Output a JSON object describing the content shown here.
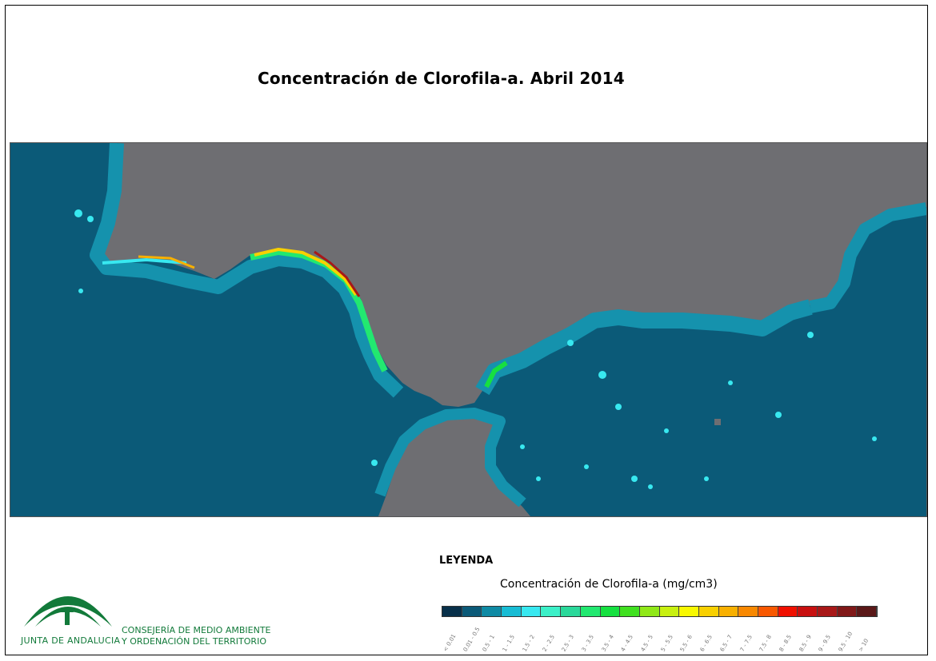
{
  "title": "Concentración de Clorofila-a. Abril 2014",
  "legend": {
    "heading": "LEYENDA",
    "title": "Concentración de Clorofila-a (mg/cm3)",
    "classes": [
      {
        "label": "< 0.01",
        "color": "#08304a"
      },
      {
        "label": "0.01 - 0.5",
        "color": "#0b5a78"
      },
      {
        "label": "0.5 - 1",
        "color": "#0f8aa4"
      },
      {
        "label": "1 - 1.5",
        "color": "#18bcd4"
      },
      {
        "label": "1.5 - 2",
        "color": "#38e8f0"
      },
      {
        "label": "2 - 2.5",
        "color": "#3cf0c8"
      },
      {
        "label": "2.5 - 3",
        "color": "#2ad89a"
      },
      {
        "label": "3 - 3.5",
        "color": "#22e870"
      },
      {
        "label": "3.5 - 4",
        "color": "#16e040"
      },
      {
        "label": "4 - 4.5",
        "color": "#40e020"
      },
      {
        "label": "4.5 - 5",
        "color": "#90e818"
      },
      {
        "label": "5 - 5.5",
        "color": "#c8f010"
      },
      {
        "label": "5.5 - 6",
        "color": "#f8f800"
      },
      {
        "label": "6 - 6.5",
        "color": "#f8d000"
      },
      {
        "label": "6.5 - 7",
        "color": "#f8b000"
      },
      {
        "label": "7 - 7.5",
        "color": "#f88800"
      },
      {
        "label": "7.5 - 8",
        "color": "#f85800"
      },
      {
        "label": "8 - 8.5",
        "color": "#f01000"
      },
      {
        "label": "8.5 - 9",
        "color": "#c81010"
      },
      {
        "label": "9 - 9.5",
        "color": "#a81818"
      },
      {
        "label": "9.5 - 10",
        "color": "#801818"
      },
      {
        "label": "> 10",
        "color": "#5a1818"
      }
    ]
  },
  "map_colors": {
    "land": "#6e6e72",
    "open_sea": "#0b5a78",
    "shelf": "#1592ad"
  },
  "logo": {
    "name": "JUNTA DE ANDALUCIA",
    "org_line_1": "CONSEJERÍA DE MEDIO AMBIENTE",
    "org_line_2": "Y ORDENACIÓN DEL TERRITORIO",
    "color": "#127a3a"
  }
}
